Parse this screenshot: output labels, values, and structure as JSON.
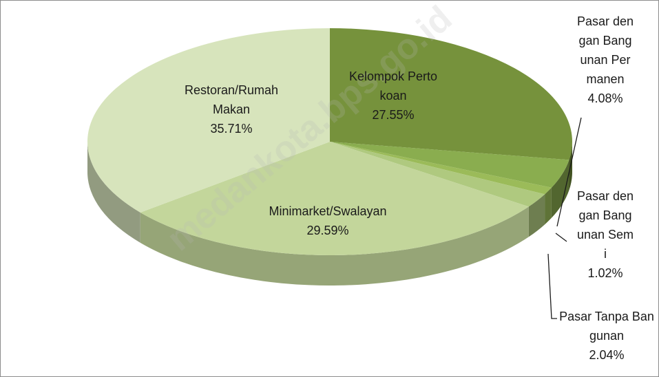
{
  "chart_data": {
    "type": "pie3d",
    "categories": [
      "Kelompok Pertokoan",
      "Pasar dengan Bangunan Permanen",
      "Pasar dengan Bangunan Semi",
      "Pasar Tanpa Bangunan",
      "Minimarket/Swalayan",
      "Restoran/Rumah Makan"
    ],
    "values": [
      27.55,
      4.08,
      1.02,
      2.04,
      29.59,
      35.71
    ],
    "value_labels": [
      "27.55%",
      "4.08%",
      "1.02%",
      "2.04%",
      "29.59%",
      "35.71%"
    ],
    "colors": [
      "#76923c",
      "#8aad4f",
      "#9bbb59",
      "#afc97f",
      "#c3d69b",
      "#d7e4bc"
    ],
    "watermark": "medankota.bps.go.id"
  }
}
